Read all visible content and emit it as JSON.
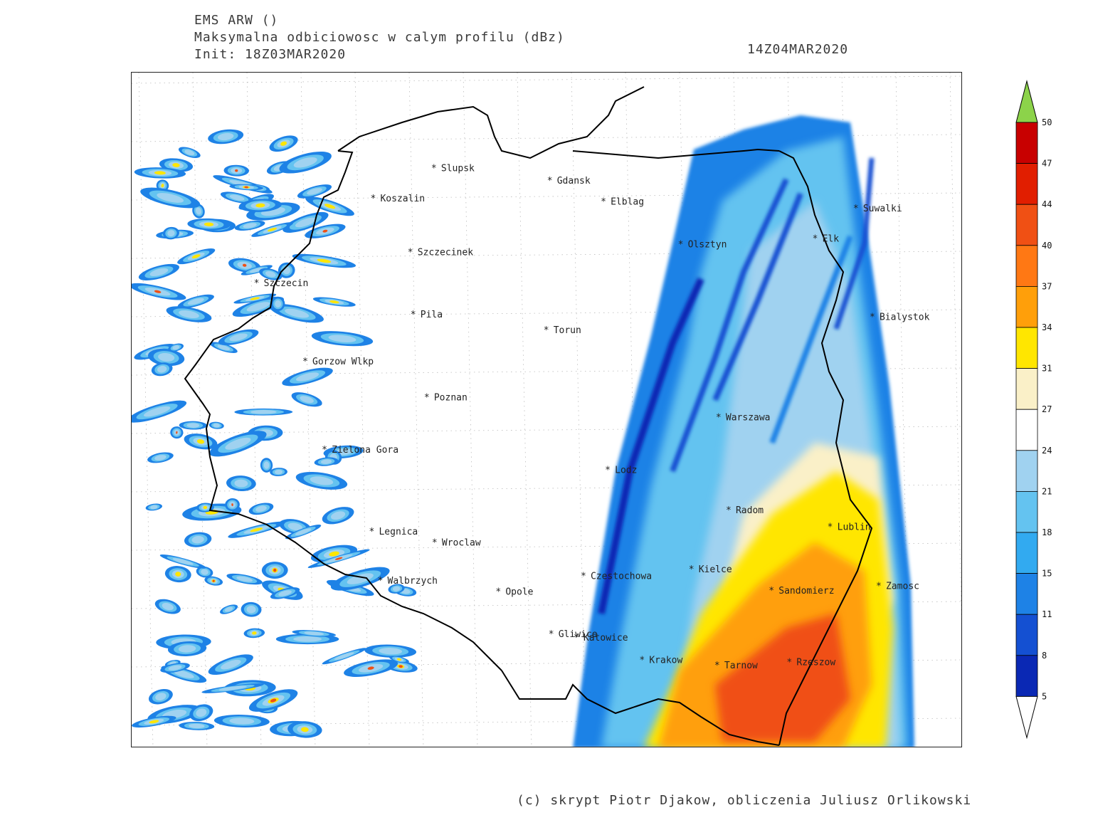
{
  "header": {
    "model": "EMS ARW ()",
    "product": "Maksymalna odbiciowosc w calym profilu (dBz)",
    "init": "Init: 18Z03MAR2020",
    "valid_time": "14Z04MAR2020"
  },
  "map": {
    "cities": [
      {
        "name": "Slupsk",
        "lon": 17.03,
        "lat": 54.46
      },
      {
        "name": "Gdansk",
        "lon": 18.65,
        "lat": 54.35
      },
      {
        "name": "Elblag",
        "lon": 19.4,
        "lat": 54.16
      },
      {
        "name": "Koszalin",
        "lon": 16.18,
        "lat": 54.19
      },
      {
        "name": "Szczecinek",
        "lon": 16.7,
        "lat": 53.71
      },
      {
        "name": "Olsztyn",
        "lon": 20.48,
        "lat": 53.78
      },
      {
        "name": "Suwalki",
        "lon": 22.93,
        "lat": 54.1
      },
      {
        "name": "Elk",
        "lon": 22.36,
        "lat": 53.83
      },
      {
        "name": "Szczecin",
        "lon": 14.55,
        "lat": 53.43
      },
      {
        "name": "Pila",
        "lon": 16.74,
        "lat": 53.15
      },
      {
        "name": "Torun",
        "lon": 18.6,
        "lat": 53.01
      },
      {
        "name": "Bialystok",
        "lon": 23.16,
        "lat": 53.13
      },
      {
        "name": "Gorzow Wlkp",
        "lon": 15.23,
        "lat": 52.73
      },
      {
        "name": "Poznan",
        "lon": 16.93,
        "lat": 52.41
      },
      {
        "name": "Warszawa",
        "lon": 21.01,
        "lat": 52.23
      },
      {
        "name": "Zielona Gora",
        "lon": 15.5,
        "lat": 51.94
      },
      {
        "name": "Lodz",
        "lon": 19.46,
        "lat": 51.76
      },
      {
        "name": "Radom",
        "lon": 21.15,
        "lat": 51.4
      },
      {
        "name": "Lublin",
        "lon": 22.57,
        "lat": 51.25
      },
      {
        "name": "Legnica",
        "lon": 16.16,
        "lat": 51.21
      },
      {
        "name": "Wroclaw",
        "lon": 17.04,
        "lat": 51.11
      },
      {
        "name": "Walbrzych",
        "lon": 16.28,
        "lat": 50.77
      },
      {
        "name": "Czestochowa",
        "lon": 19.12,
        "lat": 50.81
      },
      {
        "name": "Kielce",
        "lon": 20.63,
        "lat": 50.87
      },
      {
        "name": "Zamosc",
        "lon": 23.25,
        "lat": 50.72
      },
      {
        "name": "Sandomierz",
        "lon": 21.75,
        "lat": 50.68
      },
      {
        "name": "Opole",
        "lon": 17.93,
        "lat": 50.67
      },
      {
        "name": "Gliwice",
        "lon": 18.67,
        "lat": 50.29
      },
      {
        "name": "Katowice",
        "lon": 19.02,
        "lat": 50.26
      },
      {
        "name": "Krakow",
        "lon": 19.94,
        "lat": 50.06
      },
      {
        "name": "Tarnow",
        "lon": 20.99,
        "lat": 50.01
      },
      {
        "name": "Rzeszow",
        "lon": 22.0,
        "lat": 50.04
      }
    ]
  },
  "colorbar": {
    "unit": "dBz",
    "ticks": [
      "50",
      "47",
      "44",
      "40",
      "37",
      "34",
      "31",
      "27",
      "24",
      "21",
      "18",
      "15",
      "11",
      "8",
      "5"
    ],
    "colors": [
      "#c80000",
      "#e11e00",
      "#f05014",
      "#ff7814",
      "#ff9f0a",
      "#ffe600",
      "#faf0c8",
      "#ffffff",
      "#a0d2f0",
      "#64c3f0",
      "#32aaf0",
      "#1e82e6",
      "#1450d2",
      "#0a28b4"
    ],
    "top_arrow_color": "#8cd34a",
    "bottom_arrow_color": "#ffffff"
  },
  "credit": "(c) skrypt Piotr Djakow, obliczenia Juliusz Orlikowski"
}
